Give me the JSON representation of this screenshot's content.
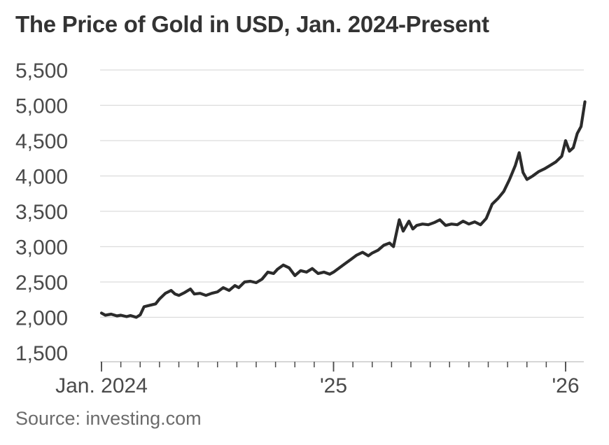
{
  "chart_data": {
    "type": "line",
    "title": "The Price of Gold in USD, Jan. 2024-Present",
    "source": "Source: investing.com",
    "xlabel": "",
    "ylabel": "",
    "ylim": [
      1500,
      5500
    ],
    "yticks": [
      1500,
      2000,
      2500,
      3000,
      3500,
      4000,
      4500,
      5000,
      5500
    ],
    "ytick_labels": [
      "1,500",
      "2,000",
      "2,500",
      "3,000",
      "3,500",
      "4,000",
      "4,500",
      "5,000",
      "5,500"
    ],
    "xlim": [
      0,
      25.3
    ],
    "x_unit": "months since Jan. 2024",
    "xtick_labels": [
      {
        "x": 0,
        "label": "Jan. 2024"
      },
      {
        "x": 12,
        "label": "'25"
      },
      {
        "x": 24,
        "label": "'26"
      }
    ],
    "minor_ticks": [
      0,
      1,
      2,
      3,
      4,
      5,
      6,
      7,
      8,
      9,
      10,
      11,
      12,
      13,
      14,
      15,
      16,
      17,
      18,
      19,
      20,
      21,
      22,
      23,
      24
    ],
    "grid": true,
    "line_color": "#2b2b2b",
    "series": [
      {
        "name": "Gold price (USD)",
        "x": [
          0,
          0.2,
          0.5,
          0.8,
          1.0,
          1.3,
          1.5,
          1.8,
          2.0,
          2.2,
          2.5,
          2.8,
          3.0,
          3.3,
          3.6,
          3.8,
          4.0,
          4.3,
          4.6,
          4.8,
          5.1,
          5.4,
          5.7,
          6.0,
          6.3,
          6.6,
          6.9,
          7.1,
          7.4,
          7.7,
          8.0,
          8.3,
          8.6,
          8.9,
          9.1,
          9.4,
          9.7,
          10.0,
          10.3,
          10.6,
          10.9,
          11.2,
          11.5,
          11.8,
          12.0,
          12.3,
          12.6,
          12.9,
          13.2,
          13.5,
          13.8,
          14.0,
          14.3,
          14.6,
          14.9,
          15.1,
          15.4,
          15.6,
          15.9,
          16.1,
          16.3,
          16.6,
          16.9,
          17.2,
          17.5,
          17.8,
          18.1,
          18.4,
          18.7,
          19.0,
          19.3,
          19.6,
          19.9,
          20.2,
          20.5,
          20.8,
          21.1,
          21.4,
          21.6,
          21.8,
          22.0,
          22.3,
          22.6,
          22.9,
          23.2,
          23.5,
          23.8,
          24.0,
          24.2,
          24.4,
          24.6,
          24.8,
          25.0
        ],
        "values": [
          2060,
          2030,
          2045,
          2020,
          2030,
          2010,
          2025,
          2000,
          2035,
          2150,
          2170,
          2190,
          2260,
          2340,
          2380,
          2330,
          2310,
          2350,
          2400,
          2330,
          2340,
          2310,
          2340,
          2360,
          2420,
          2380,
          2450,
          2420,
          2500,
          2510,
          2490,
          2540,
          2640,
          2620,
          2680,
          2740,
          2700,
          2590,
          2660,
          2640,
          2690,
          2620,
          2640,
          2610,
          2640,
          2700,
          2760,
          2820,
          2880,
          2920,
          2870,
          2910,
          2950,
          3020,
          3050,
          3000,
          3380,
          3220,
          3360,
          3250,
          3300,
          3320,
          3310,
          3340,
          3380,
          3300,
          3320,
          3310,
          3360,
          3320,
          3350,
          3310,
          3400,
          3600,
          3680,
          3780,
          3950,
          4150,
          4330,
          4050,
          3950,
          4000,
          4060,
          4100,
          4150,
          4200,
          4280,
          4500,
          4350,
          4400,
          4600,
          4700,
          5050
        ]
      }
    ]
  }
}
